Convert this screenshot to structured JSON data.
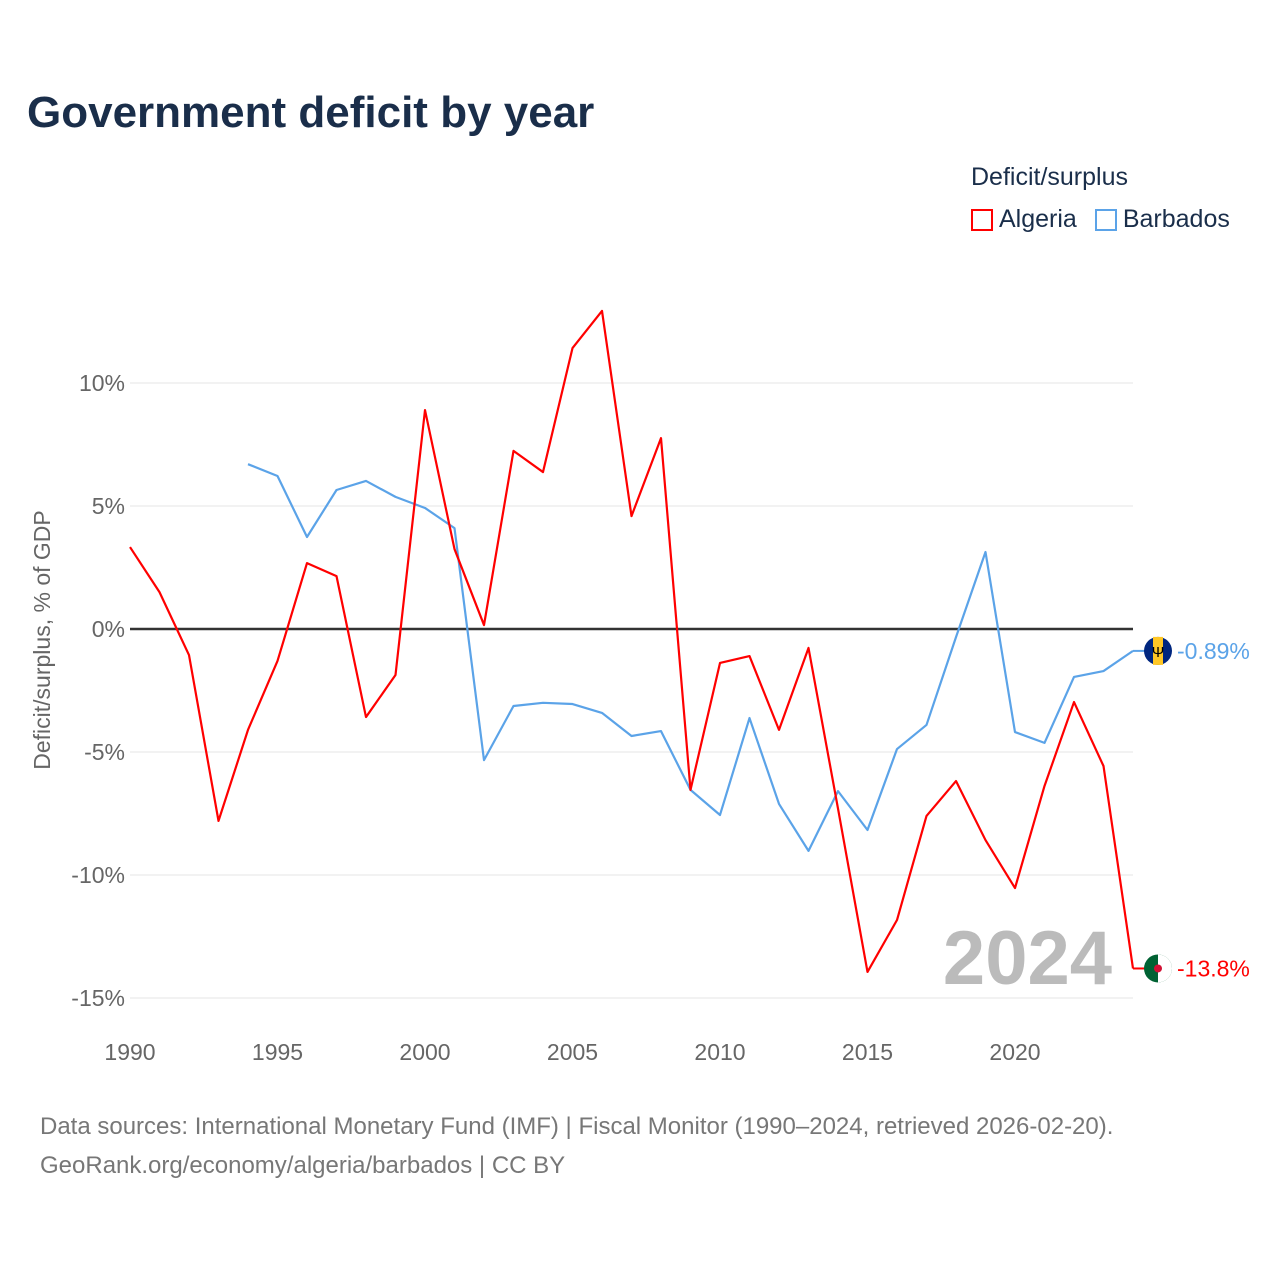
{
  "title": "Government deficit by year",
  "legend": {
    "title": "Deficit/surplus",
    "items": [
      {
        "label": "Algeria",
        "color": "#ff0000"
      },
      {
        "label": "Barbados",
        "color": "#5ba3e8"
      }
    ]
  },
  "source": {
    "line1": "Data sources: International Monetary Fund (IMF) | Fiscal Monitor (1990–2024, retrieved 2026-02-20).",
    "line2": "GeoRank.org/economy/algeria/barbados | CC BY"
  },
  "chart_data": {
    "type": "line",
    "title": "Government deficit by year",
    "ylabel": "Deficit/surplus, % of GDP",
    "xlabel": "",
    "xlim": [
      1990,
      2024
    ],
    "ylim": [
      -15.5,
      13.5
    ],
    "yticks": [
      {
        "v": 10,
        "label": "10%"
      },
      {
        "v": 5,
        "label": "5%"
      },
      {
        "v": 0,
        "label": "0%"
      },
      {
        "v": -5,
        "label": "-5%"
      },
      {
        "v": -10,
        "label": "-10%"
      },
      {
        "v": -15,
        "label": "-15%"
      }
    ],
    "xticks": [
      {
        "v": 1990,
        "label": "1990"
      },
      {
        "v": 1995,
        "label": "1995"
      },
      {
        "v": 2000,
        "label": "2000"
      },
      {
        "v": 2005,
        "label": "2005"
      },
      {
        "v": 2010,
        "label": "2010"
      },
      {
        "v": 2015,
        "label": "2015"
      },
      {
        "v": 2020,
        "label": "2020"
      }
    ],
    "year_watermark": "2024",
    "series": [
      {
        "name": "Algeria",
        "color": "#ff0000",
        "end_label": "-13.8%",
        "start": 1990,
        "values": [
          3.33,
          1.5,
          -1.06,
          -7.8,
          -4.1,
          -1.3,
          2.68,
          2.15,
          -3.58,
          -1.87,
          8.9,
          3.25,
          0.16,
          7.24,
          6.38,
          11.42,
          12.93,
          4.59,
          7.76,
          -6.54,
          -1.38,
          -1.1,
          -4.1,
          -0.77,
          -7.3,
          -13.94,
          -11.83,
          -7.6,
          -6.18,
          -8.58,
          -10.53,
          -6.38,
          -2.97,
          -5.57,
          -13.8
        ]
      },
      {
        "name": "Barbados",
        "color": "#5ba3e8",
        "end_label": "-0.89%",
        "start": 1994,
        "values": [
          6.7,
          6.22,
          3.74,
          5.65,
          6.02,
          5.37,
          4.92,
          4.1,
          -5.33,
          -3.13,
          -3.0,
          -3.05,
          -3.41,
          -4.35,
          -4.15,
          -6.54,
          -7.56,
          -3.62,
          -7.11,
          -9.02,
          -6.59,
          -8.17,
          -4.88,
          -3.9,
          -0.33,
          3.13,
          -4.19,
          -4.63,
          -1.95,
          -1.71,
          -0.89
        ]
      }
    ]
  }
}
